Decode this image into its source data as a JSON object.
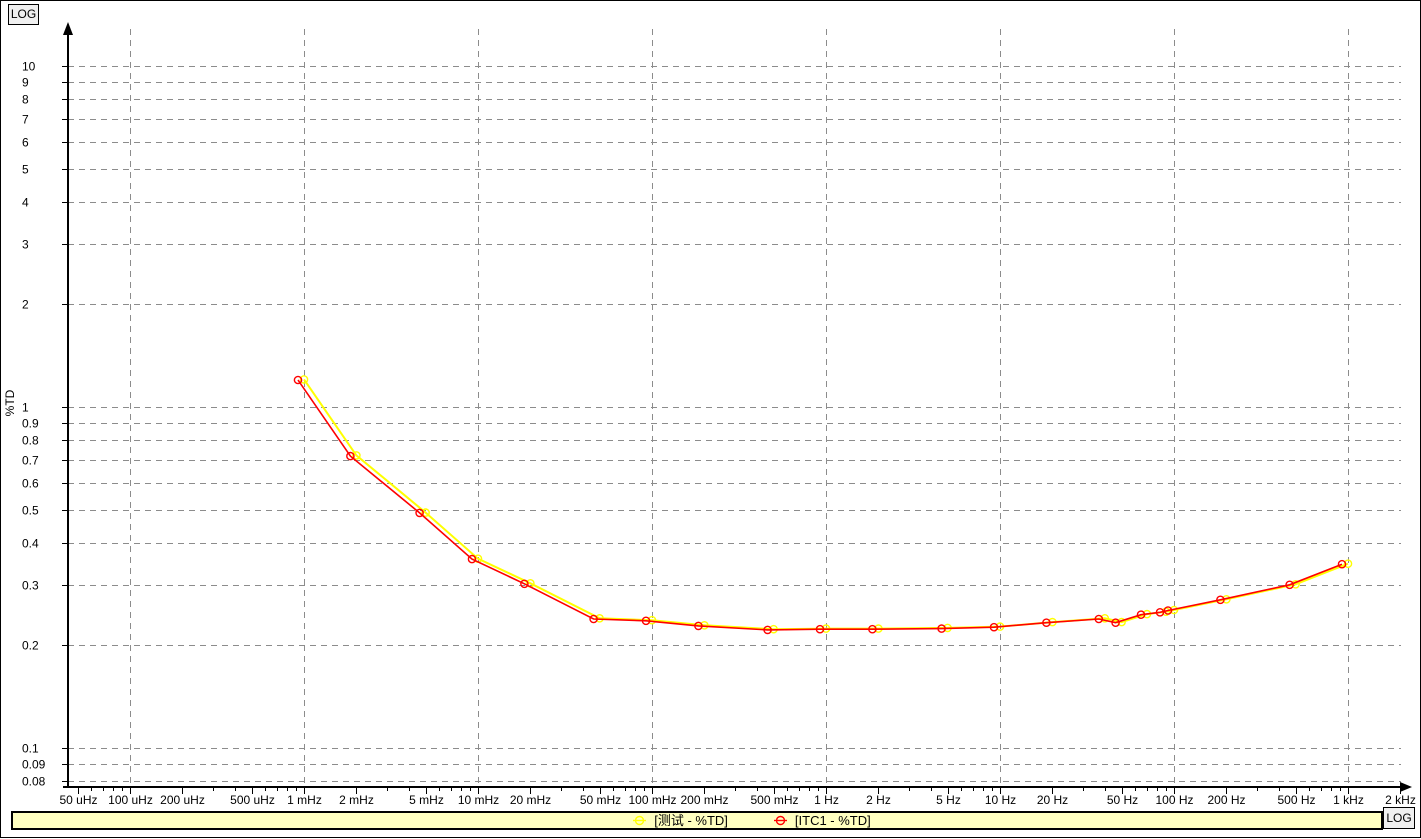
{
  "buttons": {
    "y_log_label": "LOG",
    "x_log_label": "LOG"
  },
  "legend": {
    "entries": [
      {
        "label": "[测试 - %TD]"
      },
      {
        "label": "[ITC1 - %TD]"
      }
    ]
  },
  "chart_data": {
    "type": "line",
    "title": "",
    "xlabel": "",
    "ylabel": "%TD",
    "x_scale": "log",
    "y_scale": "log",
    "xlim_hz": [
      5e-05,
      2000
    ],
    "ylim": [
      0.08,
      10
    ],
    "grid": "dashed",
    "legend_position": "bottom",
    "x_ticks": [
      {
        "label": "50 uHz",
        "hz": 5e-05
      },
      {
        "label": "100 uHz",
        "hz": 0.0001
      },
      {
        "label": "200 uHz",
        "hz": 0.0002
      },
      {
        "label": "500 uHz",
        "hz": 0.0005
      },
      {
        "label": "1 mHz",
        "hz": 0.001
      },
      {
        "label": "2 mHz",
        "hz": 0.002
      },
      {
        "label": "5 mHz",
        "hz": 0.005
      },
      {
        "label": "10 mHz",
        "hz": 0.01
      },
      {
        "label": "20 mHz",
        "hz": 0.02
      },
      {
        "label": "50 mHz",
        "hz": 0.05
      },
      {
        "label": "100 mHz",
        "hz": 0.1
      },
      {
        "label": "200 mHz",
        "hz": 0.2
      },
      {
        "label": "500 mHz",
        "hz": 0.5
      },
      {
        "label": "1 Hz",
        "hz": 1
      },
      {
        "label": "2 Hz",
        "hz": 2
      },
      {
        "label": "5 Hz",
        "hz": 5
      },
      {
        "label": "10 Hz",
        "hz": 10
      },
      {
        "label": "20 Hz",
        "hz": 20
      },
      {
        "label": "50 Hz",
        "hz": 50
      },
      {
        "label": "100 Hz",
        "hz": 100
      },
      {
        "label": "200 Hz",
        "hz": 200
      },
      {
        "label": "500 Hz",
        "hz": 500
      },
      {
        "label": "1 kHz",
        "hz": 1000
      },
      {
        "label": "2 kHz",
        "hz": 2000
      }
    ],
    "y_ticks": [
      {
        "label": "10",
        "value": 10
      },
      {
        "label": "9",
        "value": 9
      },
      {
        "label": "8",
        "value": 8
      },
      {
        "label": "7",
        "value": 7
      },
      {
        "label": "6",
        "value": 6
      },
      {
        "label": "5",
        "value": 5
      },
      {
        "label": "4",
        "value": 4
      },
      {
        "label": "3",
        "value": 3
      },
      {
        "label": "2",
        "value": 2
      },
      {
        "label": "1",
        "value": 1
      },
      {
        "label": "0.9",
        "value": 0.9
      },
      {
        "label": "0.8",
        "value": 0.8
      },
      {
        "label": "0.7",
        "value": 0.7
      },
      {
        "label": "0.6",
        "value": 0.6
      },
      {
        "label": "0.5",
        "value": 0.5
      },
      {
        "label": "0.4",
        "value": 0.4
      },
      {
        "label": "0.3",
        "value": 0.3
      },
      {
        "label": "0.2",
        "value": 0.2
      },
      {
        "label": "0.1",
        "value": 0.1
      },
      {
        "label": "0.09",
        "value": 0.09
      },
      {
        "label": "0.08",
        "value": 0.08
      }
    ],
    "v_gridlines_hz": [
      0.0001,
      0.001,
      0.01,
      0.1,
      1,
      10,
      100,
      1000
    ],
    "frequencies_hz": [
      0.001,
      0.002,
      0.005,
      0.01,
      0.02,
      0.05,
      0.1,
      0.2,
      0.5,
      1,
      2,
      5,
      10,
      20,
      40,
      50,
      70,
      90,
      100,
      200,
      500,
      1000
    ],
    "series": [
      {
        "name": "测试",
        "legend_label": "[测试 - %TD]",
        "color": "#ffff00",
        "values": [
          1.205,
          0.721,
          0.49,
          0.359,
          0.304,
          0.24,
          0.237,
          0.229,
          0.223,
          0.224,
          0.224,
          0.225,
          0.227,
          0.234,
          0.24,
          0.234,
          0.247,
          0.251,
          0.254,
          0.273,
          0.302,
          0.347
        ]
      },
      {
        "name": "ITC1",
        "legend_label": "[ITC1 - %TD]",
        "color": "#ff0000",
        "values": [
          1.2,
          0.718,
          0.489,
          0.358,
          0.303,
          0.239,
          0.236,
          0.228,
          0.222,
          0.223,
          0.223,
          0.224,
          0.226,
          0.233,
          0.239,
          0.233,
          0.246,
          0.25,
          0.253,
          0.272,
          0.301,
          0.346
        ]
      }
    ],
    "colors": {
      "background": "#ffffff",
      "grid": "#8c8c8c",
      "axis": "#000000",
      "legend_bg": "#ffffc0",
      "button_bg": "#f0f0f0"
    }
  }
}
